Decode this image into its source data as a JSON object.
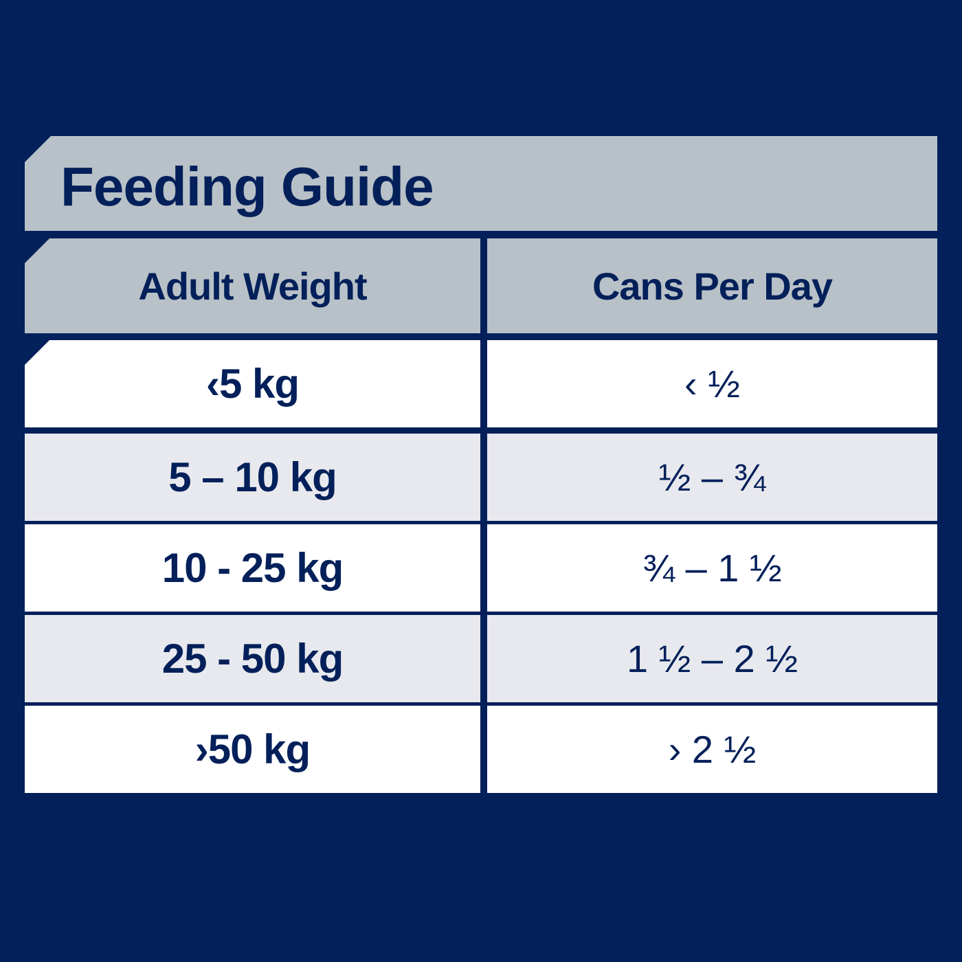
{
  "title": "Feeding Guide",
  "table": {
    "headers": [
      "Adult Weight",
      "Cans Per Day"
    ],
    "rows": [
      {
        "weight": "‹5 kg",
        "cans": "‹ ½"
      },
      {
        "weight": "5 – 10 kg",
        "cans": "½ – ¾"
      },
      {
        "weight": "10 - 25 kg",
        "cans": "¾ – 1 ½"
      },
      {
        "weight": "25 - 50 kg",
        "cans": "1 ½ – 2 ½"
      },
      {
        "weight": "›50 kg",
        "cans": "› 2 ½"
      }
    ]
  },
  "colors": {
    "background": "#03205a",
    "header_fill": "#b8c1c7",
    "row_white": "#ffffff",
    "row_grey": "#e8e9ee",
    "text": "#03205a"
  }
}
